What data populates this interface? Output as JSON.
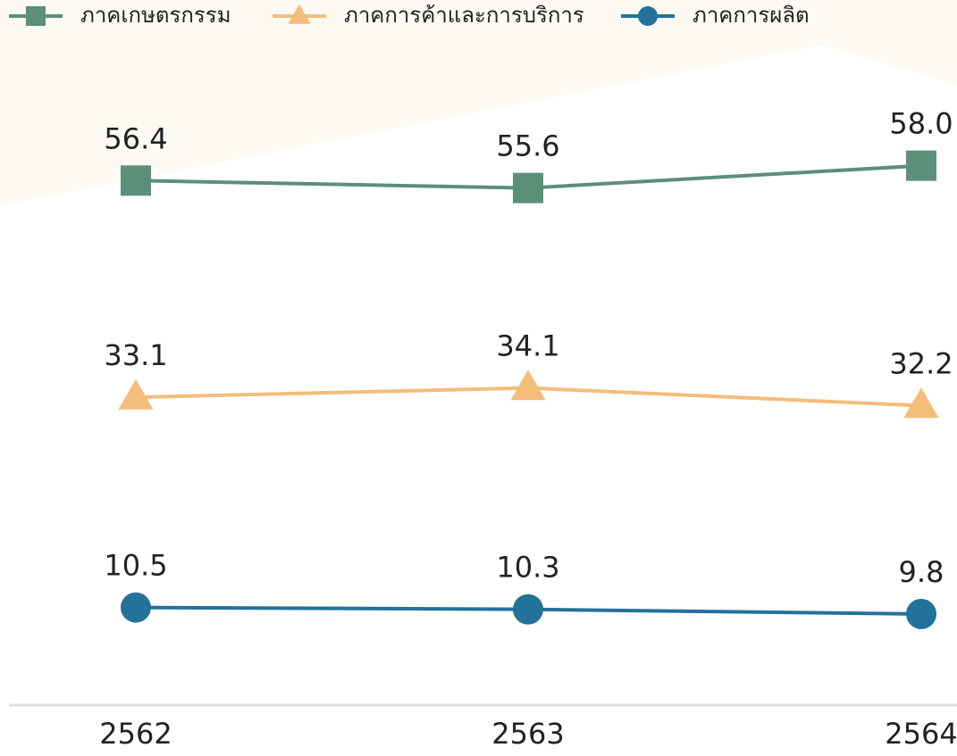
{
  "chart_data": {
    "type": "line",
    "categories": [
      "2562",
      "2563",
      "2564"
    ],
    "series": [
      {
        "name": "ภาคเกษตรกรรม",
        "color": "#5b8f7a",
        "marker": "square",
        "values": [
          56.4,
          55.6,
          58.0
        ],
        "value_labels": [
          "56.4",
          "55.6",
          "58.0"
        ]
      },
      {
        "name": "ภาคการค้าและการบริการ",
        "color": "#f3bd7a",
        "marker": "triangle",
        "values": [
          33.1,
          34.1,
          32.2
        ],
        "value_labels": [
          "33.1",
          "34.1",
          "32.2"
        ]
      },
      {
        "name": "ภาคการผลิต",
        "color": "#23729a",
        "marker": "circle",
        "values": [
          10.5,
          10.3,
          9.8
        ],
        "value_labels": [
          "10.5",
          "10.3",
          "9.8"
        ]
      }
    ],
    "legend": "top"
  }
}
